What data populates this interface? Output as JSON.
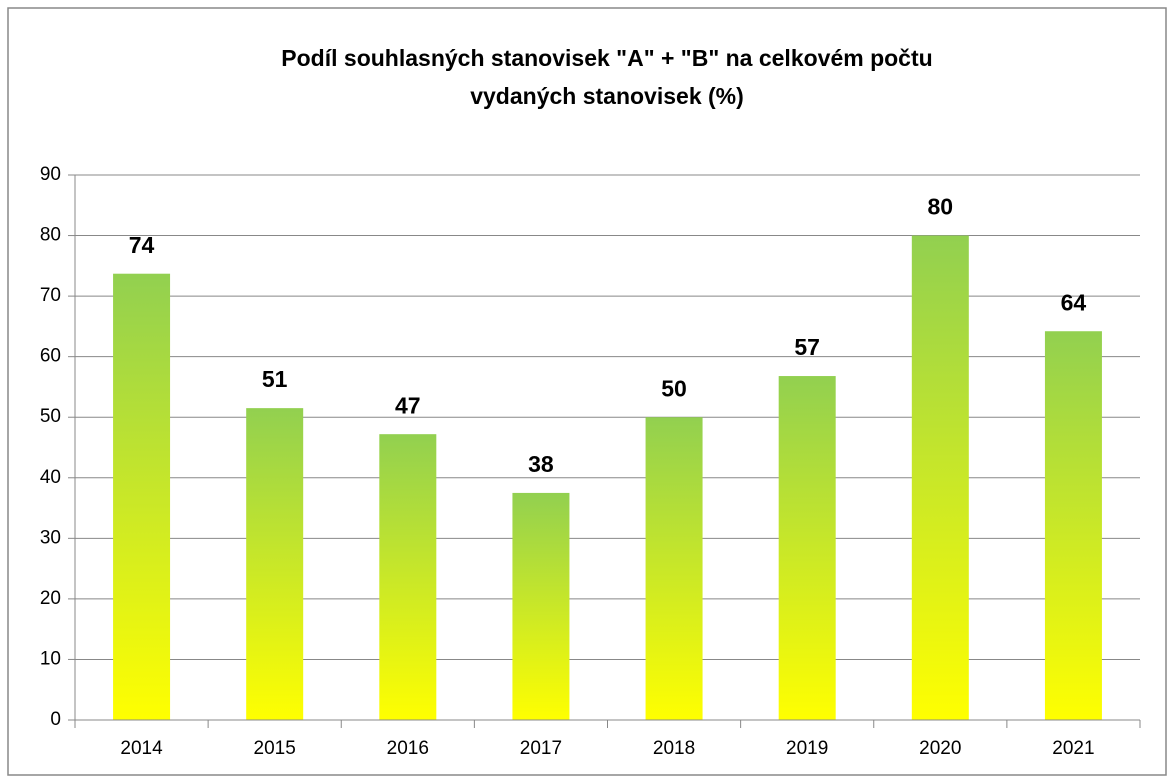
{
  "chart_data": {
    "type": "bar",
    "title": [
      "Podíl souhlasných stanovisek \"A\" + \"B\" na celkovém počtu",
      "vydaných stanovisek  (%)"
    ],
    "categories": [
      "2014",
      "2015",
      "2016",
      "2017",
      "2018",
      "2019",
      "2020",
      "2021"
    ],
    "values": [
      73.7,
      51.5,
      47.2,
      37.5,
      50,
      56.8,
      80,
      64.2
    ],
    "value_labels": [
      "74",
      "51",
      "47",
      "38",
      "50",
      "57",
      "80",
      "64"
    ],
    "gradient": [
      "#92d050",
      "#ffff00"
    ],
    "ylim": [
      0,
      90
    ],
    "yticks": [
      0,
      10,
      20,
      30,
      40,
      50,
      60,
      70,
      80,
      90
    ],
    "grid": true
  }
}
